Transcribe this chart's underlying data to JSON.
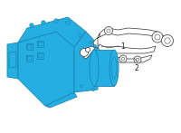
{
  "bg_color": "#ffffff",
  "part1_fill": "#25aee2",
  "part1_stroke": "#1a87b5",
  "part1_stroke_lw": 0.6,
  "part2_fill": "#ffffff",
  "part2_stroke": "#444444",
  "part2_stroke_lw": 0.55,
  "label1": "1",
  "label2": "2",
  "label_fontsize": 5.5,
  "figsize": [
    2.0,
    1.47
  ],
  "dpi": 100
}
